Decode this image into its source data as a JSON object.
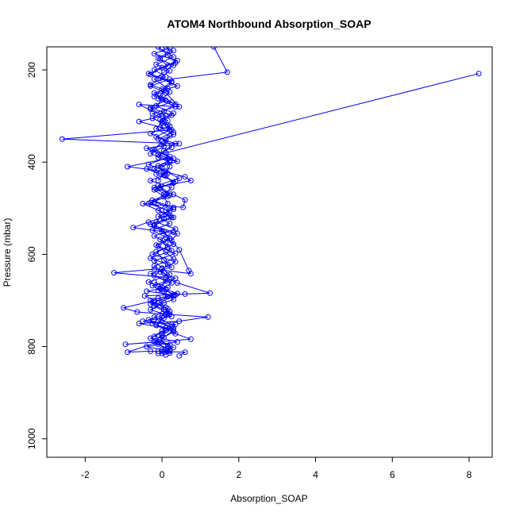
{
  "chart_data": {
    "type": "scatter",
    "title": "ATOM4 Northbound Absorption_SOAP",
    "xlabel": "Absorption_SOAP",
    "ylabel": "Pressure (mbar)",
    "xlim": [
      -3.0,
      8.6
    ],
    "ylim": [
      1040,
      150
    ],
    "y_inverted": true,
    "grid": false,
    "legend": "none",
    "x_ticks": [
      -2,
      0,
      2,
      4,
      6,
      8
    ],
    "x_tick_labels": [
      "-2",
      "0",
      "2",
      "4",
      "6",
      "8"
    ],
    "y_ticks": [
      200,
      400,
      600,
      800,
      1000
    ],
    "y_tick_labels": [
      "200",
      "400",
      "600",
      "800",
      "1000"
    ],
    "series_color": "#0000ff",
    "series": [
      {
        "points": [
          [
            0.1,
            150
          ],
          [
            0.2,
            160
          ],
          [
            -0.1,
            175
          ],
          [
            0.3,
            190
          ],
          [
            0.05,
            205
          ],
          [
            -0.2,
            220
          ],
          [
            0.15,
            240
          ],
          [
            -0.05,
            255
          ],
          [
            0.25,
            270
          ],
          [
            -0.3,
            285
          ],
          [
            0.1,
            300
          ],
          [
            0.0,
            315
          ],
          [
            0.2,
            330
          ],
          [
            -0.15,
            345
          ],
          [
            0.35,
            360
          ],
          [
            0.05,
            375
          ],
          [
            -0.1,
            390
          ],
          [
            0.2,
            400
          ],
          [
            -0.4,
            415
          ],
          [
            0.1,
            430
          ],
          [
            0.3,
            445
          ],
          [
            -0.2,
            460
          ],
          [
            0.05,
            475
          ],
          [
            0.15,
            490
          ],
          [
            -0.1,
            505
          ],
          [
            0.25,
            520
          ],
          [
            -0.3,
            535
          ],
          [
            0.0,
            550
          ],
          [
            0.2,
            565
          ],
          [
            -0.15,
            580
          ],
          [
            0.1,
            595
          ],
          [
            0.3,
            610
          ],
          [
            -0.2,
            625
          ],
          [
            0.05,
            640
          ],
          [
            0.2,
            655
          ],
          [
            -0.1,
            670
          ],
          [
            0.4,
            685
          ],
          [
            -0.3,
            700
          ],
          [
            0.1,
            715
          ],
          [
            0.2,
            730
          ],
          [
            -0.1,
            745
          ],
          [
            0.3,
            760
          ],
          [
            0.0,
            775
          ],
          [
            -0.2,
            790
          ],
          [
            0.15,
            805
          ],
          [
            0.0,
            815
          ]
        ]
      },
      {
        "points": [
          [
            0.2,
            152
          ],
          [
            -0.2,
            165
          ],
          [
            0.4,
            180
          ],
          [
            0.0,
            195
          ],
          [
            -0.3,
            210
          ],
          [
            0.25,
            228
          ],
          [
            0.05,
            245
          ],
          [
            -0.1,
            262
          ],
          [
            0.35,
            280
          ],
          [
            -0.25,
            295
          ],
          [
            0.15,
            310
          ],
          [
            -0.05,
            325
          ],
          [
            0.3,
            340
          ],
          [
            0.0,
            355
          ],
          [
            -0.2,
            372
          ],
          [
            0.2,
            388
          ],
          [
            -0.35,
            405
          ],
          [
            0.1,
            420
          ],
          [
            0.45,
            435
          ],
          [
            -0.1,
            450
          ],
          [
            0.2,
            468
          ],
          [
            -0.25,
            483
          ],
          [
            0.3,
            498
          ],
          [
            0.0,
            515
          ],
          [
            -0.15,
            530
          ],
          [
            0.35,
            545
          ],
          [
            -0.2,
            560
          ],
          [
            0.1,
            575
          ],
          [
            0.25,
            592
          ],
          [
            -0.3,
            608
          ],
          [
            0.15,
            622
          ],
          [
            -0.05,
            638
          ],
          [
            0.35,
            652
          ],
          [
            -0.25,
            668
          ],
          [
            0.05,
            682
          ],
          [
            0.3,
            698
          ],
          [
            -0.2,
            712
          ],
          [
            0.15,
            728
          ],
          [
            -0.35,
            742
          ],
          [
            0.25,
            758
          ],
          [
            0.0,
            772
          ],
          [
            -0.15,
            788
          ],
          [
            0.3,
            802
          ],
          [
            0.05,
            812
          ]
        ]
      },
      {
        "points": [
          [
            0.0,
            155
          ],
          [
            0.3,
            172
          ],
          [
            -0.15,
            188
          ],
          [
            0.2,
            202
          ],
          [
            -0.05,
            218
          ],
          [
            0.4,
            235
          ],
          [
            -0.2,
            250
          ],
          [
            0.1,
            266
          ],
          [
            -0.3,
            282
          ],
          [
            0.25,
            298
          ],
          [
            0.0,
            312
          ],
          [
            -0.15,
            328
          ],
          [
            0.2,
            343
          ],
          [
            0.05,
            358
          ],
          [
            -0.25,
            374
          ],
          [
            0.3,
            392
          ],
          [
            -0.1,
            408
          ],
          [
            0.15,
            424
          ],
          [
            -0.3,
            440
          ],
          [
            0.25,
            455
          ],
          [
            0.05,
            470
          ],
          [
            -0.2,
            486
          ],
          [
            0.3,
            502
          ],
          [
            -0.1,
            518
          ],
          [
            0.2,
            533
          ],
          [
            -0.25,
            548
          ],
          [
            0.1,
            563
          ],
          [
            0.3,
            578
          ],
          [
            -0.15,
            594
          ],
          [
            0.05,
            612
          ],
          [
            0.25,
            628
          ],
          [
            -0.3,
            642
          ],
          [
            0.1,
            658
          ],
          [
            -0.05,
            674
          ],
          [
            0.35,
            688
          ],
          [
            -0.2,
            704
          ],
          [
            0.15,
            718
          ],
          [
            0.0,
            734
          ],
          [
            -0.25,
            750
          ],
          [
            0.3,
            764
          ],
          [
            0.05,
            780
          ],
          [
            -0.1,
            795
          ],
          [
            0.2,
            808
          ],
          [
            0.1,
            818
          ]
        ]
      },
      {
        "points": [
          [
            -0.1,
            150
          ],
          [
            0.15,
            168
          ],
          [
            0.35,
            185
          ],
          [
            -0.2,
            200
          ],
          [
            0.1,
            215
          ],
          [
            -0.3,
            232
          ],
          [
            0.2,
            248
          ],
          [
            0.0,
            264
          ],
          [
            -0.15,
            278
          ],
          [
            0.3,
            294
          ],
          [
            -0.05,
            308
          ],
          [
            0.2,
            322
          ],
          [
            -0.3,
            338
          ],
          [
            0.1,
            352
          ],
          [
            0.25,
            368
          ],
          [
            -0.1,
            384
          ],
          [
            0.4,
            398
          ],
          [
            -0.2,
            414
          ],
          [
            0.05,
            428
          ],
          [
            0.3,
            444
          ],
          [
            -0.15,
            458
          ],
          [
            0.15,
            474
          ],
          [
            -0.35,
            490
          ],
          [
            0.2,
            506
          ],
          [
            0.05,
            522
          ],
          [
            -0.2,
            538
          ],
          [
            0.3,
            552
          ],
          [
            -0.05,
            568
          ],
          [
            0.15,
            584
          ],
          [
            -0.25,
            600
          ],
          [
            0.35,
            616
          ],
          [
            0.0,
            632
          ],
          [
            -0.2,
            646
          ],
          [
            0.25,
            662
          ],
          [
            -0.1,
            678
          ],
          [
            0.15,
            692
          ],
          [
            -0.3,
            708
          ],
          [
            0.2,
            724
          ],
          [
            0.05,
            738
          ],
          [
            -0.15,
            754
          ],
          [
            0.3,
            768
          ],
          [
            -0.05,
            784
          ],
          [
            0.15,
            798
          ],
          [
            -0.1,
            810
          ]
        ]
      },
      {
        "points": [
          [
            0.3,
            158
          ],
          [
            -0.05,
            176
          ],
          [
            0.15,
            192
          ],
          [
            -0.35,
            208
          ],
          [
            0.25,
            225
          ],
          [
            0.0,
            242
          ],
          [
            -0.2,
            258
          ],
          [
            0.35,
            274
          ],
          [
            0.05,
            290
          ],
          [
            -0.25,
            305
          ],
          [
            0.15,
            320
          ],
          [
            0.3,
            335
          ],
          [
            -0.1,
            350
          ],
          [
            0.05,
            366
          ],
          [
            -0.3,
            382
          ],
          [
            0.2,
            396
          ],
          [
            0.0,
            412
          ],
          [
            -0.15,
            426
          ],
          [
            0.35,
            442
          ],
          [
            -0.05,
            456
          ],
          [
            0.2,
            472
          ],
          [
            -0.3,
            488
          ],
          [
            0.1,
            504
          ],
          [
            0.3,
            520
          ],
          [
            -0.2,
            536
          ],
          [
            0.05,
            550
          ],
          [
            0.2,
            566
          ],
          [
            -0.1,
            582
          ],
          [
            0.35,
            598
          ],
          [
            -0.2,
            614
          ],
          [
            0.0,
            630
          ],
          [
            0.2,
            644
          ],
          [
            -0.35,
            660
          ],
          [
            0.1,
            676
          ],
          [
            0.3,
            690
          ],
          [
            -0.1,
            706
          ],
          [
            0.05,
            720
          ],
          [
            -0.2,
            736
          ],
          [
            0.25,
            752
          ],
          [
            0.0,
            766
          ],
          [
            -0.3,
            782
          ],
          [
            0.2,
            796
          ],
          [
            0.0,
            806
          ],
          [
            0.2,
            814
          ]
        ]
      },
      {
        "points": [
          [
            1.35,
            150
          ],
          [
            1.7,
            205
          ],
          [
            0.2,
            220
          ],
          [
            -0.3,
            235
          ],
          [
            0.1,
            250
          ],
          [
            0.45,
            280
          ],
          [
            -0.6,
            275
          ],
          [
            0.0,
            300
          ],
          [
            -0.6,
            312
          ],
          [
            0.25,
            330
          ],
          [
            -2.6,
            350
          ],
          [
            0.45,
            360
          ],
          [
            -0.4,
            370
          ],
          [
            0.15,
            392
          ],
          [
            -0.9,
            410
          ],
          [
            0.05,
            420
          ],
          [
            0.6,
            432
          ],
          [
            0.75,
            440
          ],
          [
            -0.2,
            455
          ],
          [
            0.3,
            470
          ],
          [
            0.6,
            482
          ],
          [
            0.55,
            498
          ],
          [
            -0.5,
            490
          ],
          [
            0.2,
            515
          ],
          [
            -0.35,
            530
          ],
          [
            -0.75,
            542
          ],
          [
            0.4,
            555
          ],
          [
            0.25,
            570
          ],
          [
            0.45,
            590
          ],
          [
            0.7,
            635
          ],
          [
            0.75,
            642
          ],
          [
            -0.2,
            632
          ],
          [
            -1.25,
            640
          ],
          [
            0.1,
            650
          ],
          [
            0.4,
            662
          ],
          [
            1.25,
            684
          ],
          [
            0.6,
            686
          ],
          [
            -0.45,
            690
          ],
          [
            -0.2,
            700
          ],
          [
            -1.0,
            716
          ],
          [
            -0.65,
            725
          ],
          [
            0.1,
            730
          ],
          [
            1.2,
            736
          ],
          [
            0.45,
            745
          ],
          [
            -0.6,
            750
          ],
          [
            0.1,
            760
          ],
          [
            0.35,
            772
          ],
          [
            0.75,
            784
          ],
          [
            -0.95,
            795
          ],
          [
            -0.1,
            790
          ],
          [
            -0.9,
            812
          ],
          [
            -0.3,
            810
          ],
          [
            0.6,
            812
          ],
          [
            0.45,
            820
          ]
        ]
      },
      {
        "points": [
          [
            8.25,
            208
          ],
          [
            0.1,
            380
          ],
          [
            0.2,
            410
          ],
          [
            -0.1,
            440
          ]
        ]
      },
      {
        "points": [
          [
            -0.2,
            660
          ],
          [
            0.15,
            672
          ],
          [
            -0.4,
            680
          ],
          [
            0.3,
            688
          ],
          [
            -0.1,
            695
          ],
          [
            0.05,
            705
          ],
          [
            -0.3,
            720
          ],
          [
            0.25,
            735
          ],
          [
            -0.5,
            745
          ],
          [
            0.35,
            752
          ],
          [
            0.1,
            765
          ],
          [
            -0.2,
            778
          ],
          [
            0.4,
            790
          ],
          [
            -0.4,
            800
          ],
          [
            0.2,
            810
          ],
          [
            -0.1,
            815
          ]
        ]
      }
    ]
  }
}
